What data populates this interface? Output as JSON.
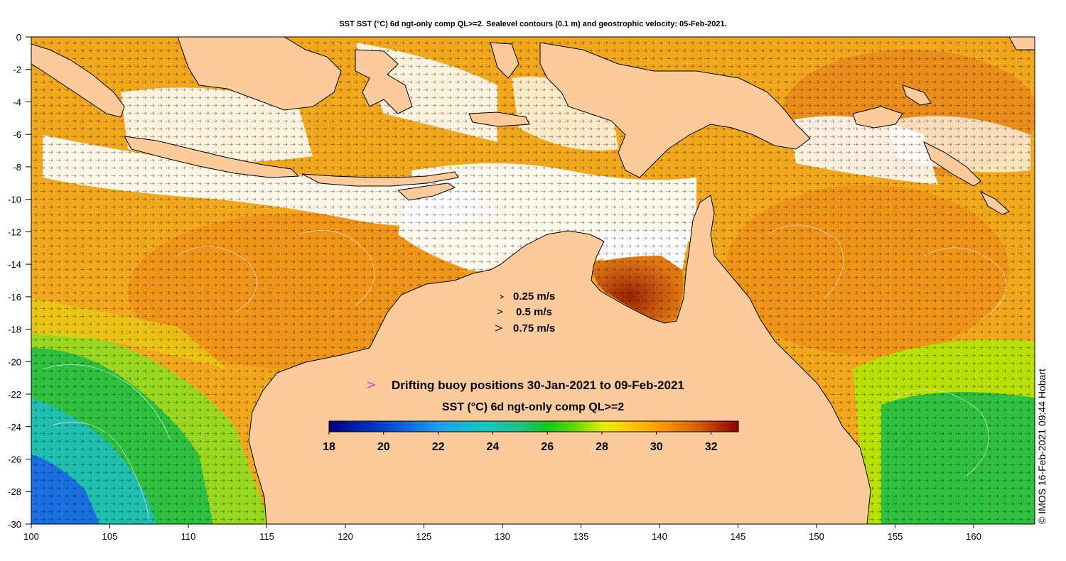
{
  "title": "SST SST (°C) 6d ngt-only comp QL>=2. Sealevel contours (0.1 m) and geostrophic velocity: 05-Feb-2021.",
  "x_ticks": [
    "100",
    "105",
    "110",
    "115",
    "120",
    "125",
    "130",
    "135",
    "140",
    "145",
    "150",
    "155",
    "160"
  ],
  "y_ticks": [
    "0",
    "-2",
    "-4",
    "-6",
    "-8",
    "-10",
    "-12",
    "-14",
    "-16",
    "-18",
    "-20",
    "-22",
    "-24",
    "-26",
    "-28",
    "-30"
  ],
  "velocity_legend": [
    "0.25 m/s",
    "0.5 m/s",
    "0.75 m/s"
  ],
  "buoy_legend": "Drifting buoy positions 30-Jan-2021 to 09-Feb-2021",
  "colorbar": {
    "label": "SST (°C) 6d ngt-only comp QL>=2",
    "ticks": [
      "18",
      "20",
      "22",
      "24",
      "26",
      "28",
      "30",
      "32"
    ],
    "min": 18,
    "max": 33
  },
  "credit": "© IMOS 16-Feb-2021 09:44 Hobart",
  "colors": {
    "land": "#fccb9c",
    "cloud": "#ffffff",
    "buoy_marker": "#ff00ff",
    "coast": "#000000"
  }
}
